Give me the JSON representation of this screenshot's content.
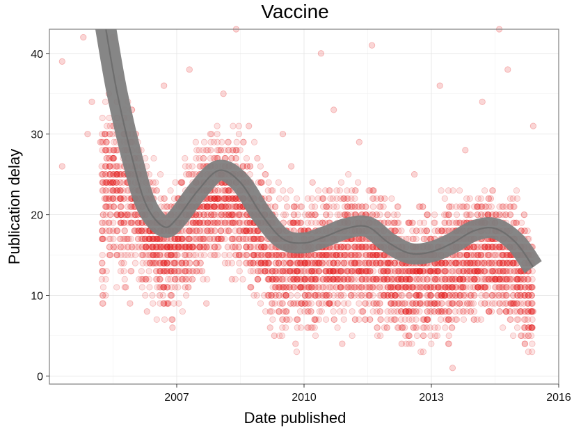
{
  "chart_data": {
    "type": "scatter",
    "title": "Vaccine",
    "xlabel": "Date published",
    "ylabel": "Publication delay",
    "xlim": [
      2004.0,
      2016.0
    ],
    "ylim": [
      -1,
      43
    ],
    "x_ticks": [
      2007,
      2010,
      2013,
      2016
    ],
    "x_tick_labels": [
      "2007",
      "2010",
      "2013",
      "2016"
    ],
    "y_ticks": [
      0,
      10,
      20,
      30,
      40
    ],
    "y_tick_labels": [
      "0",
      "10",
      "20",
      "30",
      "40"
    ],
    "grid": true,
    "point_color": "#e41a1c",
    "point_alpha": 0.12,
    "smooth_color": "#7f7f7f",
    "smooth_band_halfwidth": 1.3,
    "smooth_line": {
      "name": "smoothed trend",
      "x": [
        2005.3,
        2005.6,
        2006.0,
        2006.3,
        2006.7,
        2007.0,
        2007.5,
        2008.0,
        2008.5,
        2009.0,
        2009.5,
        2010.0,
        2010.5,
        2011.0,
        2011.5,
        2012.0,
        2012.5,
        2013.0,
        2013.5,
        2014.0,
        2014.5,
        2015.0,
        2015.4
      ],
      "y": [
        44,
        35,
        26,
        21,
        18.5,
        19.5,
        23,
        25.5,
        24,
        20,
        17,
        16.5,
        17.3,
        18.3,
        18.5,
        16.5,
        15.2,
        15.4,
        16.5,
        18,
        18.3,
        16.5,
        13.5
      ]
    },
    "points": [
      {
        "x": 2004.3,
        "y": 26
      },
      {
        "x": 2004.3,
        "y": 39
      },
      {
        "x": 2004.8,
        "y": 42
      },
      {
        "x": 2004.9,
        "y": 30
      },
      {
        "x": 2005.0,
        "y": 34
      },
      {
        "x": 2005.2,
        "y": 29
      },
      {
        "x": 2005.3,
        "y": 22
      },
      {
        "x": 2005.3,
        "y": 30
      },
      {
        "x": 2005.4,
        "y": 35
      },
      {
        "x": 2005.4,
        "y": 19
      },
      {
        "x": 2005.5,
        "y": 18
      },
      {
        "x": 2005.5,
        "y": 42
      },
      {
        "x": 2005.6,
        "y": 25
      },
      {
        "x": 2005.7,
        "y": 14
      },
      {
        "x": 2005.8,
        "y": 11
      },
      {
        "x": 2005.9,
        "y": 9
      },
      {
        "x": 2006.0,
        "y": 21
      },
      {
        "x": 2006.1,
        "y": 16
      },
      {
        "x": 2006.2,
        "y": 12
      },
      {
        "x": 2006.3,
        "y": 8
      },
      {
        "x": 2006.4,
        "y": 23
      },
      {
        "x": 2006.5,
        "y": 14
      },
      {
        "x": 2006.6,
        "y": 10
      },
      {
        "x": 2006.7,
        "y": 36
      },
      {
        "x": 2006.8,
        "y": 18
      },
      {
        "x": 2006.9,
        "y": 7
      },
      {
        "x": 2006.9,
        "y": 6
      },
      {
        "x": 2007.0,
        "y": 15
      },
      {
        "x": 2007.1,
        "y": 24
      },
      {
        "x": 2007.2,
        "y": 11
      },
      {
        "x": 2007.3,
        "y": 38
      },
      {
        "x": 2007.4,
        "y": 17
      },
      {
        "x": 2007.5,
        "y": 21
      },
      {
        "x": 2007.6,
        "y": 13
      },
      {
        "x": 2007.7,
        "y": 9
      },
      {
        "x": 2007.8,
        "y": 28
      },
      {
        "x": 2007.9,
        "y": 19
      },
      {
        "x": 2008.0,
        "y": 22
      },
      {
        "x": 2008.1,
        "y": 35
      },
      {
        "x": 2008.2,
        "y": 16
      },
      {
        "x": 2008.3,
        "y": 12
      },
      {
        "x": 2008.3,
        "y": 25
      },
      {
        "x": 2008.4,
        "y": 43
      },
      {
        "x": 2008.5,
        "y": 20
      },
      {
        "x": 2008.6,
        "y": 18
      },
      {
        "x": 2008.7,
        "y": 31
      },
      {
        "x": 2008.8,
        "y": 14
      },
      {
        "x": 2008.9,
        "y": 27
      },
      {
        "x": 2009.0,
        "y": 22
      },
      {
        "x": 2009.1,
        "y": 19
      },
      {
        "x": 2009.2,
        "y": 8
      },
      {
        "x": 2009.2,
        "y": 6
      },
      {
        "x": 2009.3,
        "y": 5
      },
      {
        "x": 2009.4,
        "y": 17
      },
      {
        "x": 2009.5,
        "y": 30
      },
      {
        "x": 2009.6,
        "y": 21
      },
      {
        "x": 2009.7,
        "y": 26
      },
      {
        "x": 2009.8,
        "y": 4
      },
      {
        "x": 2009.9,
        "y": 15
      },
      {
        "x": 2010.0,
        "y": 12
      },
      {
        "x": 2010.1,
        "y": 18
      },
      {
        "x": 2010.2,
        "y": 24
      },
      {
        "x": 2010.3,
        "y": 14
      },
      {
        "x": 2010.4,
        "y": 40
      },
      {
        "x": 2010.5,
        "y": 10
      },
      {
        "x": 2010.6,
        "y": 16
      },
      {
        "x": 2010.7,
        "y": 33
      },
      {
        "x": 2010.8,
        "y": 13
      },
      {
        "x": 2010.9,
        "y": 4
      },
      {
        "x": 2011.0,
        "y": 20
      },
      {
        "x": 2011.1,
        "y": 11
      },
      {
        "x": 2011.2,
        "y": 15
      },
      {
        "x": 2011.3,
        "y": 29
      },
      {
        "x": 2011.4,
        "y": 19
      },
      {
        "x": 2011.5,
        "y": 13
      },
      {
        "x": 2011.6,
        "y": 41
      },
      {
        "x": 2011.7,
        "y": 9
      },
      {
        "x": 2011.8,
        "y": 12
      },
      {
        "x": 2011.9,
        "y": 22
      },
      {
        "x": 2012.0,
        "y": 14
      },
      {
        "x": 2012.1,
        "y": 11
      },
      {
        "x": 2012.2,
        "y": 8
      },
      {
        "x": 2012.3,
        "y": 4
      },
      {
        "x": 2012.4,
        "y": 16
      },
      {
        "x": 2012.5,
        "y": 12
      },
      {
        "x": 2012.6,
        "y": 25
      },
      {
        "x": 2012.7,
        "y": 10
      },
      {
        "x": 2012.8,
        "y": 13
      },
      {
        "x": 2012.9,
        "y": 7
      },
      {
        "x": 2013.0,
        "y": 15
      },
      {
        "x": 2013.1,
        "y": 12
      },
      {
        "x": 2013.2,
        "y": 36
      },
      {
        "x": 2013.3,
        "y": 10
      },
      {
        "x": 2013.4,
        "y": 4
      },
      {
        "x": 2013.5,
        "y": 1
      },
      {
        "x": 2013.6,
        "y": 14
      },
      {
        "x": 2013.7,
        "y": 11
      },
      {
        "x": 2013.8,
        "y": 28
      },
      {
        "x": 2013.9,
        "y": 9
      },
      {
        "x": 2014.0,
        "y": 17
      },
      {
        "x": 2014.1,
        "y": 13
      },
      {
        "x": 2014.2,
        "y": 34
      },
      {
        "x": 2014.3,
        "y": 10
      },
      {
        "x": 2014.4,
        "y": 22
      },
      {
        "x": 2014.5,
        "y": 12
      },
      {
        "x": 2014.6,
        "y": 43
      },
      {
        "x": 2014.7,
        "y": 16
      },
      {
        "x": 2014.8,
        "y": 38
      },
      {
        "x": 2014.9,
        "y": 9
      },
      {
        "x": 2015.0,
        "y": 19
      },
      {
        "x": 2015.1,
        "y": 11
      },
      {
        "x": 2015.2,
        "y": 4
      },
      {
        "x": 2015.3,
        "y": 14
      },
      {
        "x": 2015.4,
        "y": 31
      },
      {
        "x": 2015.4,
        "y": 8
      }
    ]
  }
}
